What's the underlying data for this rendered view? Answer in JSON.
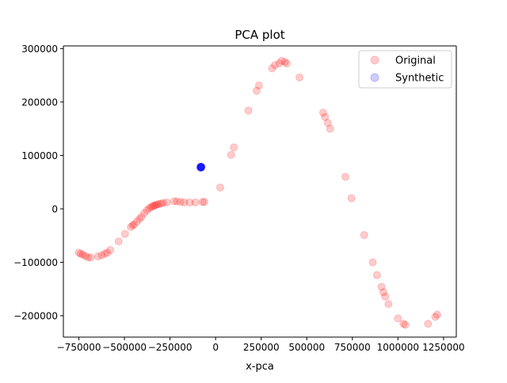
{
  "colors": {
    "original": "#ff0000",
    "synthetic": "#0000ff",
    "axis": "#000000",
    "background": "#ffffff"
  },
  "chart_data": {
    "type": "scatter",
    "title": "PCA plot",
    "xlabel": "x-pca",
    "ylabel": "",
    "xlim": [
      -835000,
      1320000
    ],
    "ylim": [
      -240000,
      305000
    ],
    "grid": false,
    "legend_position": "top-right",
    "x_ticks": [
      -750000,
      -500000,
      -250000,
      0,
      250000,
      500000,
      750000,
      1000000,
      1250000
    ],
    "x_tick_labels": [
      "−750000",
      "−500000",
      "−250000",
      "0",
      "250000",
      "500000",
      "750000",
      "1000000",
      "1250000"
    ],
    "y_ticks": [
      -200000,
      -100000,
      0,
      100000,
      200000,
      300000
    ],
    "y_tick_labels": [
      "−200000",
      "−100000",
      "0",
      "100000",
      "200000",
      "300000"
    ],
    "series": [
      {
        "name": "Original",
        "color": "#ff0000",
        "alpha": 0.2,
        "points": [
          [
            -750000,
            -82000
          ],
          [
            -740000,
            -84000
          ],
          [
            -728000,
            -86000
          ],
          [
            -715000,
            -88000
          ],
          [
            -700000,
            -91000
          ],
          [
            -685000,
            -91000
          ],
          [
            -645000,
            -89000
          ],
          [
            -625000,
            -87000
          ],
          [
            -608000,
            -84000
          ],
          [
            -595000,
            -82000
          ],
          [
            -578000,
            -77000
          ],
          [
            -532000,
            -61000
          ],
          [
            -497000,
            -47000
          ],
          [
            -465000,
            -34000
          ],
          [
            -455000,
            -31000
          ],
          [
            -447000,
            -29000
          ],
          [
            -432000,
            -24000
          ],
          [
            -418000,
            -19000
          ],
          [
            -407000,
            -15000
          ],
          [
            -392000,
            -8000
          ],
          [
            -377000,
            -3000
          ],
          [
            -365000,
            1000
          ],
          [
            -355000,
            3000
          ],
          [
            -345000,
            5000
          ],
          [
            -338000,
            6000
          ],
          [
            -330000,
            7000
          ],
          [
            -322000,
            8000
          ],
          [
            -312000,
            9000
          ],
          [
            -300000,
            10000
          ],
          [
            -288000,
            11000
          ],
          [
            -268000,
            12000
          ],
          [
            -228000,
            14000
          ],
          [
            -212000,
            14000
          ],
          [
            -192000,
            13000
          ],
          [
            -172000,
            12000
          ],
          [
            -142000,
            12000
          ],
          [
            -112000,
            12000
          ],
          [
            -72000,
            13000
          ],
          [
            -62000,
            13000
          ],
          [
            25000,
            40000
          ],
          [
            85000,
            101000
          ],
          [
            100000,
            115000
          ],
          [
            180000,
            184000
          ],
          [
            225000,
            221000
          ],
          [
            238000,
            231000
          ],
          [
            310000,
            263000
          ],
          [
            325000,
            269000
          ],
          [
            348000,
            272000
          ],
          [
            362000,
            277000
          ],
          [
            380000,
            275000
          ],
          [
            390000,
            272000
          ],
          [
            460000,
            246000
          ],
          [
            590000,
            180000
          ],
          [
            600000,
            172000
          ],
          [
            615000,
            161000
          ],
          [
            628000,
            150000
          ],
          [
            712000,
            60000
          ],
          [
            745000,
            20000
          ],
          [
            815000,
            -49000
          ],
          [
            862000,
            -100000
          ],
          [
            885000,
            -124000
          ],
          [
            910000,
            -146000
          ],
          [
            920000,
            -156000
          ],
          [
            930000,
            -164000
          ],
          [
            948000,
            -178000
          ],
          [
            1000000,
            -205000
          ],
          [
            1030000,
            -215000
          ],
          [
            1040000,
            -217000
          ],
          [
            1165000,
            -215000
          ],
          [
            1205000,
            -202000
          ],
          [
            1215000,
            -198000
          ]
        ]
      },
      {
        "name": "Synthetic",
        "color": "#0000ff",
        "alpha": 0.2,
        "points": [
          [
            -82000,
            78000
          ],
          [
            -80000,
            79000
          ],
          [
            -84000,
            77000
          ],
          [
            -78000,
            78000
          ],
          [
            -81000,
            77000
          ],
          [
            -79000,
            79000
          ],
          [
            -83000,
            79000
          ],
          [
            -80000,
            77500
          ],
          [
            -82500,
            78500
          ],
          [
            -77000,
            78000
          ]
        ]
      }
    ]
  }
}
